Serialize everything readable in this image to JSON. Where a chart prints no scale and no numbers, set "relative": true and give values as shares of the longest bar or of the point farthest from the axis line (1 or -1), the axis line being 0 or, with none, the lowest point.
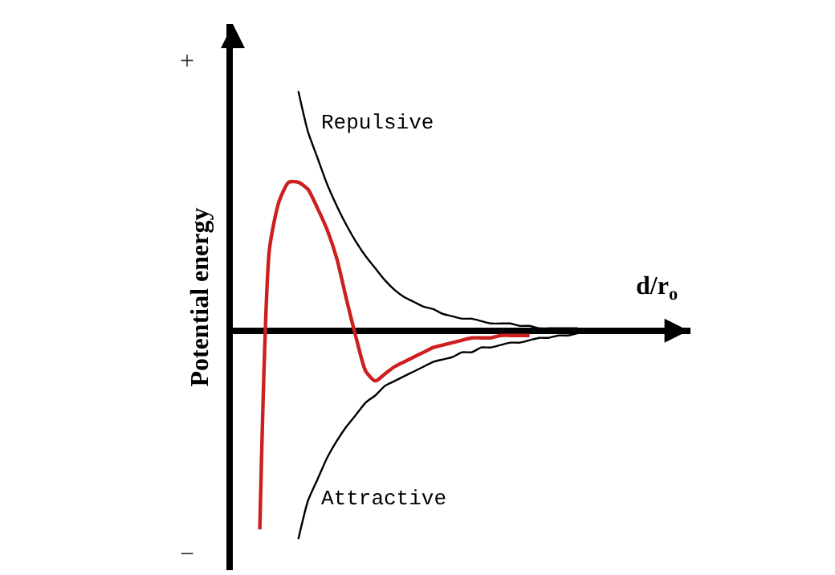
{
  "chart_data": {
    "type": "line",
    "relative": true,
    "xlabel": "d/r$_{o}$",
    "ylabel": "Potential energy",
    "annotations": [
      "+",
      "−"
    ],
    "categories": [
      null,
      null,
      null,
      null,
      null,
      null,
      null,
      null,
      null,
      null,
      null,
      null,
      null,
      null,
      null,
      null,
      null,
      null,
      null,
      null,
      null,
      null,
      null,
      null,
      null,
      null,
      null,
      null,
      null,
      null,
      null,
      null,
      null,
      null
    ],
    "series": [
      {
        "name": "Repulsive",
        "color": "#000000",
        "values": [
          null,
          null,
          null,
          null,
          1.0,
          0.83,
          0.72,
          0.61,
          0.52,
          0.44,
          0.37,
          0.31,
          0.26,
          0.21,
          0.17,
          0.14,
          0.12,
          0.1,
          0.09,
          0.07,
          0.06,
          0.05,
          0.05,
          0.04,
          0.03,
          0.03,
          0.03,
          0.02,
          0.02,
          0.01,
          0.01,
          0.01,
          0.01,
          0.01
        ]
      },
      {
        "name": "Attractive",
        "color": "#000000",
        "values": [
          null,
          null,
          null,
          null,
          -0.87,
          -0.71,
          -0.62,
          -0.53,
          -0.46,
          -0.4,
          -0.35,
          -0.3,
          -0.27,
          -0.23,
          -0.21,
          -0.19,
          -0.17,
          -0.15,
          -0.13,
          -0.12,
          -0.11,
          -0.09,
          -0.09,
          -0.07,
          -0.07,
          -0.06,
          -0.05,
          -0.05,
          -0.04,
          -0.03,
          -0.03,
          -0.02,
          -0.02,
          -0.01
        ]
      },
      {
        "color": "#cc1f1f",
        "values": [
          -0.83,
          0.34,
          0.54,
          0.62,
          0.62,
          0.59,
          0.51,
          0.42,
          0.3,
          0.13,
          -0.03,
          -0.17,
          -0.21,
          -0.18,
          -0.15,
          -0.13,
          -0.11,
          -0.09,
          -0.07,
          -0.06,
          -0.05,
          -0.04,
          -0.03,
          -0.03,
          -0.03,
          -0.02,
          -0.02,
          -0.02,
          -0.02,
          null,
          null,
          null,
          null,
          null
        ]
      }
    ],
    "legend": false
  }
}
